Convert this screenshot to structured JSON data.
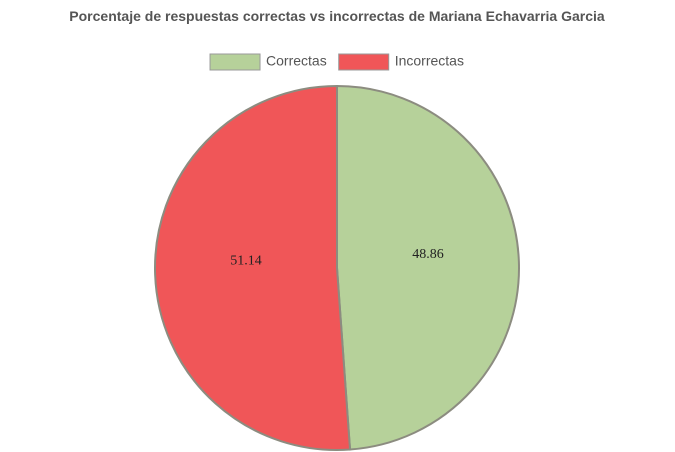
{
  "chart_data": {
    "type": "pie",
    "title": "Porcentaje de respuestas correctas vs incorrectas de Mariana Echavarria Garcia",
    "categories": [
      "Correctas",
      "Incorrectas"
    ],
    "values": [
      48.86,
      51.14
    ],
    "colors": [
      "#b6d19a",
      "#f05658"
    ],
    "legend": "top"
  }
}
